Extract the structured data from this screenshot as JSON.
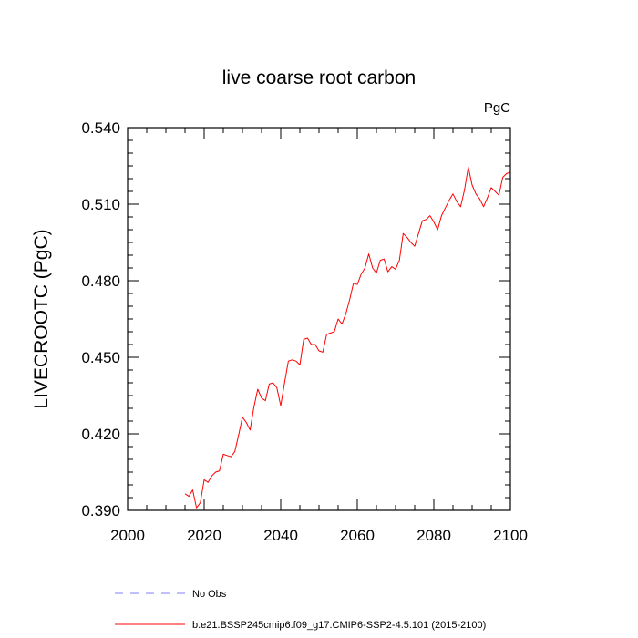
{
  "chart_data": {
    "type": "line",
    "title": "live coarse root carbon",
    "units_label": "PgC",
    "ylabel": "LIVECROOTC  (PgC)",
    "xlabel": "",
    "xlim": [
      2000,
      2100
    ],
    "ylim": [
      0.39,
      0.54
    ],
    "x_ticks": [
      2000,
      2020,
      2040,
      2060,
      2080,
      2100
    ],
    "y_ticks": [
      "0.390",
      "0.420",
      "0.450",
      "0.480",
      "0.510",
      "0.540"
    ],
    "y_tick_values": [
      0.39,
      0.42,
      0.45,
      0.48,
      0.51,
      0.54
    ],
    "grid": false,
    "legend_position": "bottom-left",
    "legend": [
      {
        "label": "No Obs",
        "color": "#8080ff",
        "style": "dashed"
      },
      {
        "label": "b.e21.BSSP245cmip6.f09_g17.CMIP6-SSP2-4.5.101 (2015-2100)",
        "color": "#ff0000",
        "style": "solid"
      }
    ],
    "series": [
      {
        "name": "b.e21.BSSP245cmip6.f09_g17.CMIP6-SSP2-4.5.101 (2015-2100)",
        "color": "#ff0000",
        "x": [
          2015,
          2016,
          2017,
          2018,
          2019,
          2020,
          2021,
          2022,
          2023,
          2024,
          2025,
          2026,
          2027,
          2028,
          2029,
          2030,
          2031,
          2032,
          2033,
          2034,
          2035,
          2036,
          2037,
          2038,
          2039,
          2040,
          2041,
          2042,
          2043,
          2044,
          2045,
          2046,
          2047,
          2048,
          2049,
          2050,
          2051,
          2052,
          2053,
          2054,
          2055,
          2056,
          2057,
          2058,
          2059,
          2060,
          2061,
          2062,
          2063,
          2064,
          2065,
          2066,
          2067,
          2068,
          2069,
          2070,
          2071,
          2072,
          2073,
          2074,
          2075,
          2076,
          2077,
          2078,
          2079,
          2080,
          2081,
          2082,
          2083,
          2084,
          2085,
          2086,
          2087,
          2088,
          2089,
          2090,
          2091,
          2092,
          2093,
          2094,
          2095,
          2096,
          2097,
          2098,
          2099,
          2100
        ],
        "y": [
          0.3965,
          0.3955,
          0.398,
          0.391,
          0.393,
          0.402,
          0.401,
          0.4035,
          0.405,
          0.4055,
          0.412,
          0.4115,
          0.411,
          0.413,
          0.4195,
          0.4265,
          0.4245,
          0.4215,
          0.4305,
          0.4375,
          0.434,
          0.433,
          0.4395,
          0.44,
          0.438,
          0.431,
          0.44,
          0.4485,
          0.449,
          0.4485,
          0.447,
          0.457,
          0.4575,
          0.455,
          0.455,
          0.4525,
          0.452,
          0.459,
          0.4595,
          0.46,
          0.465,
          0.463,
          0.467,
          0.4725,
          0.479,
          0.4785,
          0.4825,
          0.485,
          0.4905,
          0.485,
          0.483,
          0.488,
          0.4885,
          0.4835,
          0.4855,
          0.4845,
          0.488,
          0.4985,
          0.497,
          0.495,
          0.4935,
          0.4985,
          0.5035,
          0.504,
          0.5055,
          0.503,
          0.5,
          0.5055,
          0.5085,
          0.5115,
          0.514,
          0.511,
          0.509,
          0.5155,
          0.5245,
          0.5175,
          0.514,
          0.512,
          0.509,
          0.5125,
          0.5165,
          0.515,
          0.5135,
          0.5205,
          0.522,
          0.5225
        ]
      }
    ]
  }
}
